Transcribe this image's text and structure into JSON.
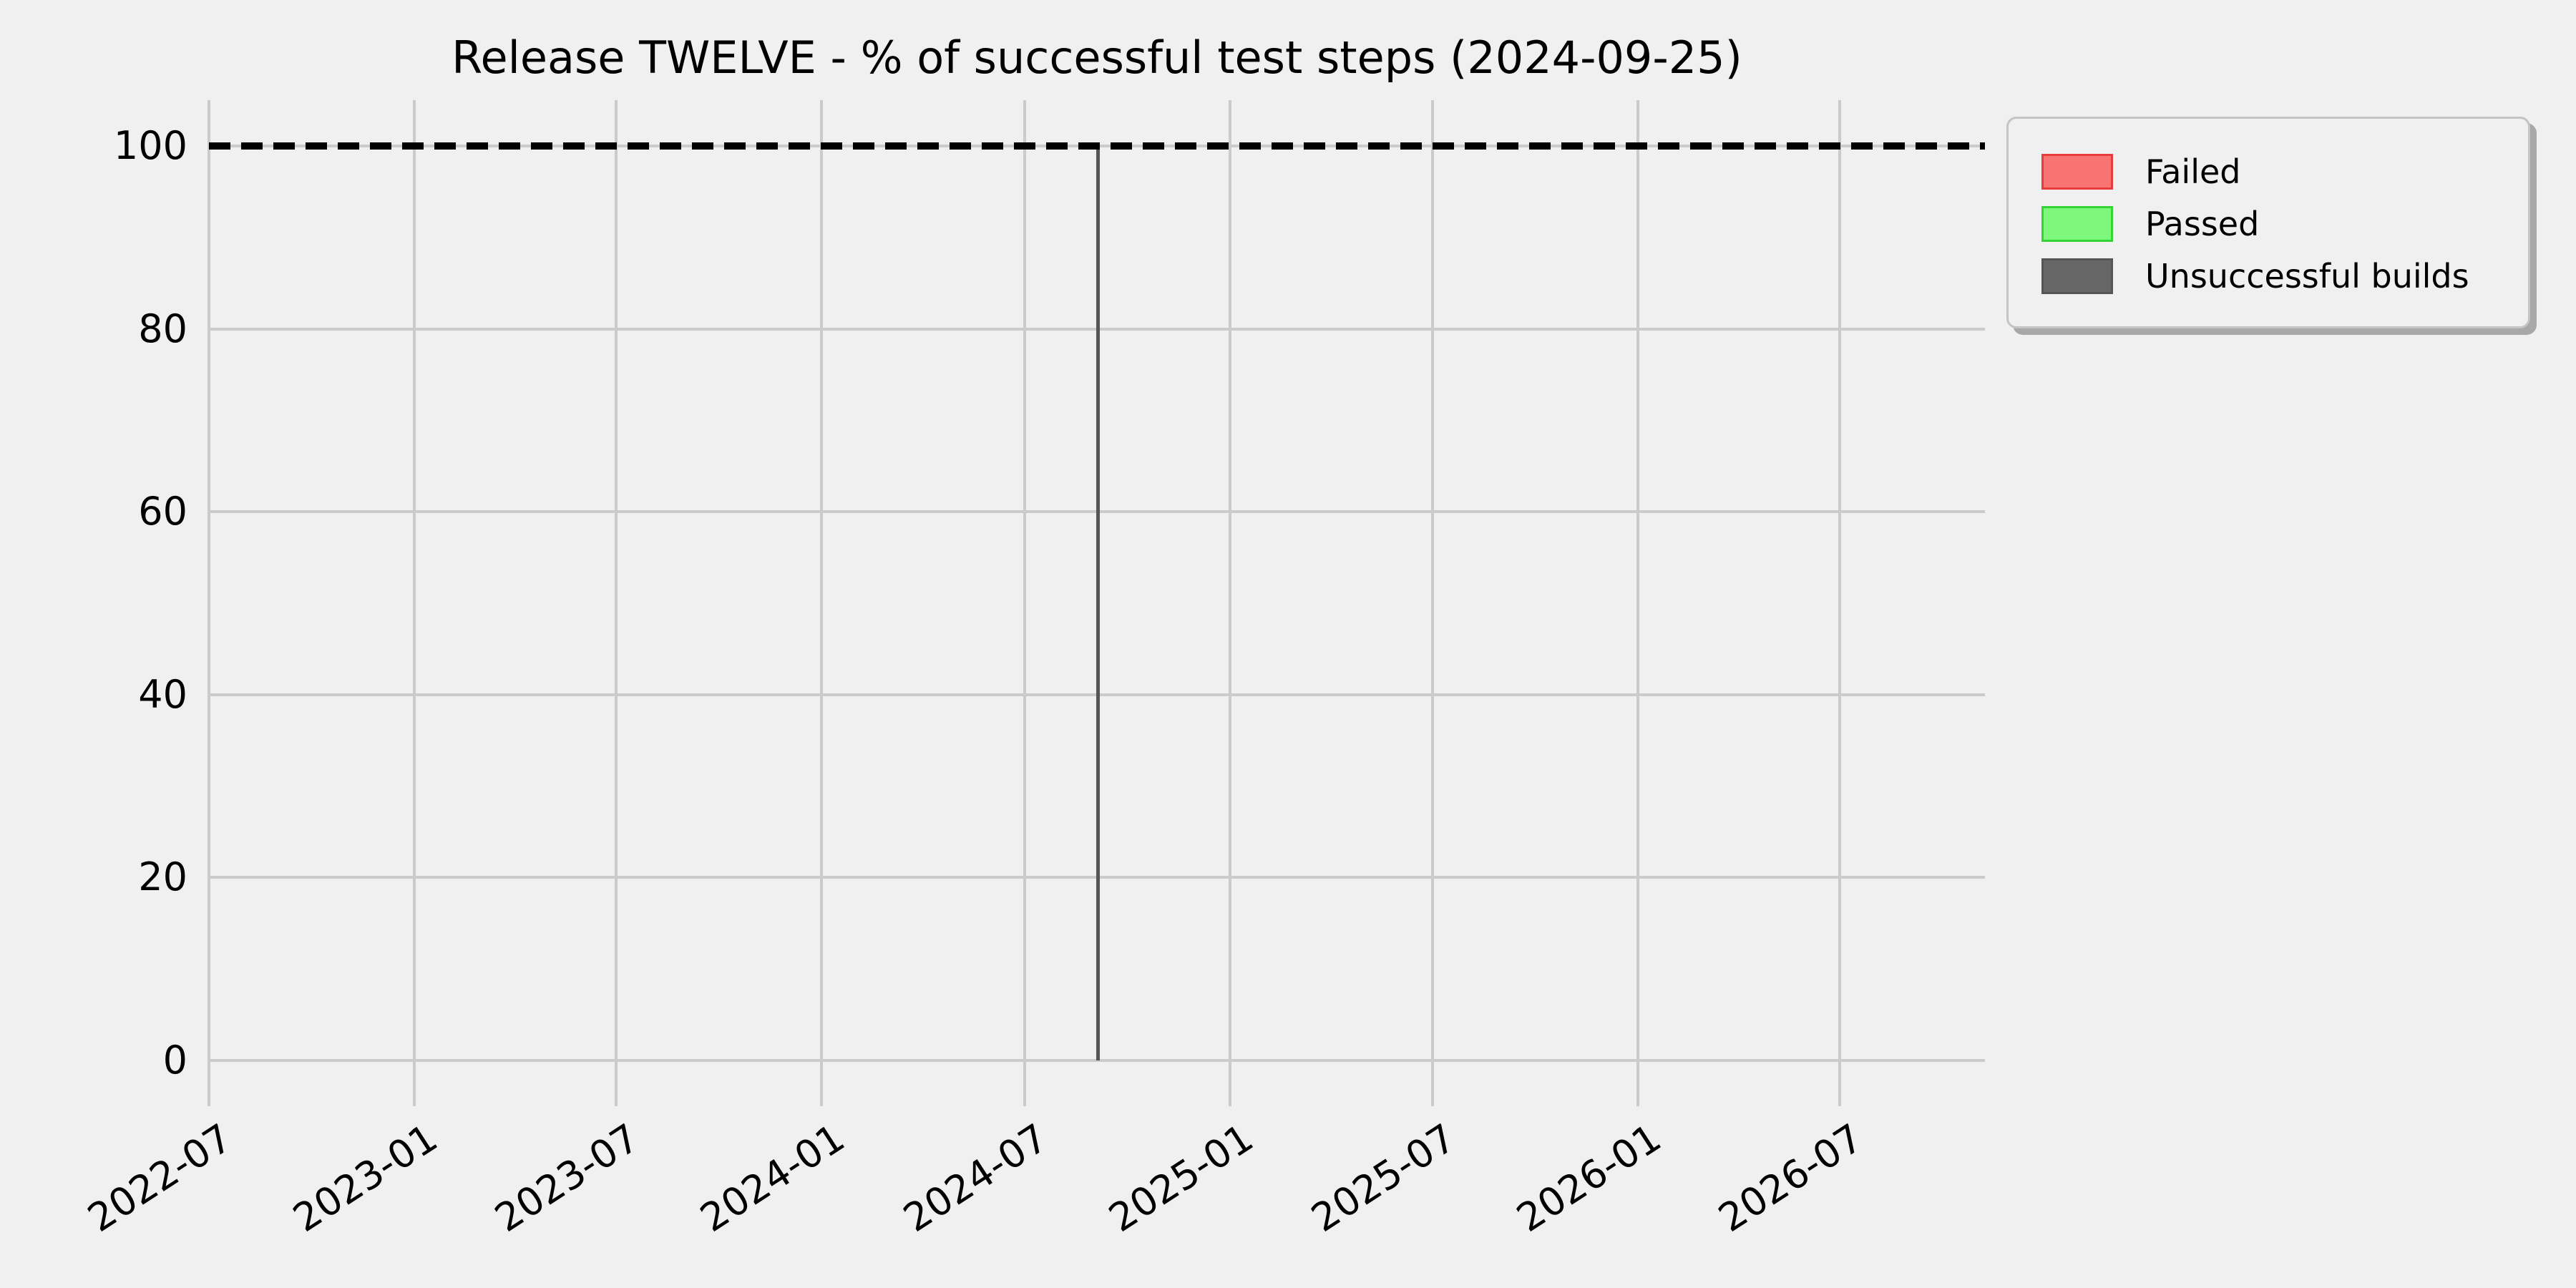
{
  "chart_data": {
    "type": "bar",
    "title": "Release TWELVE - % of successful test steps (2024-09-25)",
    "xlabel": "",
    "ylabel": "",
    "background_color": "#f0f0f0",
    "grid_color": "#cbcbcb",
    "grid": true,
    "legend_position": "upper right outside",
    "x_axis": {
      "type": "date",
      "lim": [
        "2022-07-01",
        "2026-11-08"
      ],
      "ticks": [
        {
          "label": "2022-07",
          "date": "2022-07-01"
        },
        {
          "label": "2023-01",
          "date": "2023-01-01"
        },
        {
          "label": "2023-07",
          "date": "2023-07-01"
        },
        {
          "label": "2024-01",
          "date": "2024-01-01"
        },
        {
          "label": "2024-07",
          "date": "2024-07-01"
        },
        {
          "label": "2025-01",
          "date": "2025-01-01"
        },
        {
          "label": "2025-07",
          "date": "2025-07-01"
        },
        {
          "label": "2026-01",
          "date": "2026-01-01"
        },
        {
          "label": "2026-07",
          "date": "2026-07-01"
        }
      ],
      "tick_rotation_deg": 33
    },
    "y_axis": {
      "lim": [
        -5,
        105
      ],
      "ticks": [
        0,
        20,
        40,
        60,
        80,
        100
      ]
    },
    "target_line": {
      "y": 100,
      "style": "dashed",
      "color": "#000000"
    },
    "series": [
      {
        "name": "Failed",
        "fill": "#f87474",
        "edge": "#e83c3c",
        "points": []
      },
      {
        "name": "Passed",
        "fill": "#7df87d",
        "edge": "#35d435",
        "points": []
      },
      {
        "name": "Unsuccessful builds",
        "fill": "#666666",
        "edge": "#555555",
        "points": [
          {
            "date": "2024-09-04",
            "value": 100
          }
        ]
      }
    ]
  }
}
